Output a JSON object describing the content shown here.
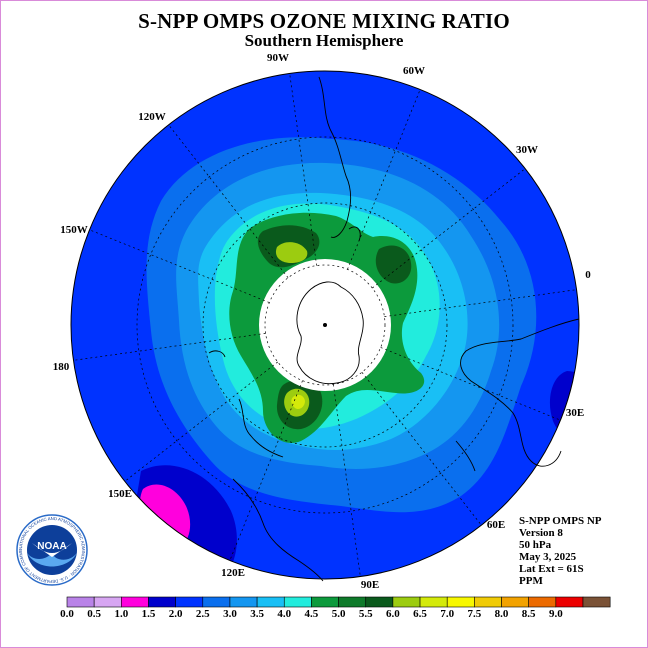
{
  "header": {
    "title": "S-NPP OMPS OZONE MIXING RATIO",
    "subtitle": "Southern Hemisphere"
  },
  "map": {
    "longitude_labels": [
      "90W",
      "60W",
      "30W",
      "0",
      "30E",
      "60E",
      "90E",
      "120E",
      "150E",
      "180",
      "150W",
      "120W"
    ],
    "projection": "south polar stereographic",
    "pole_data_gap": true
  },
  "info": {
    "instrument": "S-NPP OMPS NP",
    "version": "Version 8",
    "level": "50 hPa",
    "date": "May 3, 2025",
    "lat_ext": "Lat Ext = 61S",
    "units": "PPM"
  },
  "colorbar": {
    "ticks": [
      "0.0",
      "0.5",
      "1.0",
      "1.5",
      "2.0",
      "2.5",
      "3.0",
      "3.5",
      "4.0",
      "4.5",
      "5.0",
      "5.5",
      "6.0",
      "6.5",
      "7.0",
      "7.5",
      "8.0",
      "8.5",
      "9.0"
    ],
    "colors": [
      "#b983e8",
      "#d7a6f2",
      "#ff00dd",
      "#0000cc",
      "#0033ff",
      "#0a6fee",
      "#1496f0",
      "#19bff5",
      "#22ecdd",
      "#0c9a3c",
      "#0e7a2a",
      "#0a5a1c",
      "#9ccc10",
      "#d4ea0a",
      "#f8f800",
      "#f0cb06",
      "#f2a200",
      "#ec6a00",
      "#ec0000",
      "#7a5236"
    ]
  },
  "logo": {
    "text": "NOAA",
    "ring_text": "NATIONAL OCEANIC AND ATMOSPHERIC ADMINISTRATION · U.S. DEPARTMENT OF COMMERCE"
  }
}
